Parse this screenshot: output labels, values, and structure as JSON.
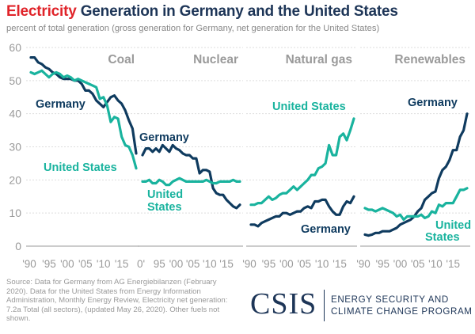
{
  "title_highlight": "Electricity",
  "title_rest": " Generation in Germany and the United States",
  "subtitle": "percent of total generation (gross generation for Germany, net generation for the United States)",
  "source": "Source: Data for Germany from AG Energiebilanzen (February 2020). Data for the United States from Energy Information Administration, Monthly Energy Review, Electricity net generation: 7.2a Total (all sectors), (updated May 26, 2020). Other fuels not shown.",
  "logo": {
    "name": "CSIS",
    "line1": "ENERGY SECURITY AND",
    "line2": "CLIMATE CHANGE PROGRAM"
  },
  "colors": {
    "germany": "#0f3b5f",
    "united_states": "#19b39e",
    "title_highlight": "#e0242a",
    "grid": "#dddddd",
    "axis_text": "#999999",
    "panel_title": "#9a9a9a"
  },
  "chart_data": [
    {
      "type": "line",
      "title": "Coal",
      "x": [
        1990,
        1991,
        1992,
        1993,
        1994,
        1995,
        1996,
        1997,
        1998,
        1999,
        2000,
        2001,
        2002,
        2003,
        2004,
        2005,
        2006,
        2007,
        2008,
        2009,
        2010,
        2011,
        2012,
        2013,
        2014,
        2015,
        2016,
        2017,
        2018,
        2019
      ],
      "ylim": [
        0,
        60
      ],
      "yticks": [
        "0",
        "10",
        "20",
        "30",
        "40",
        "50",
        "60"
      ],
      "xticks": [
        "'90",
        "'95",
        "'00",
        "'05",
        "'10",
        "'15"
      ],
      "series": [
        {
          "name": "Germany",
          "values": [
            57,
            57,
            55.5,
            55,
            54,
            53.5,
            52.5,
            52,
            51,
            50.5,
            50.5,
            50.5,
            50,
            50,
            49,
            47,
            47,
            46,
            44,
            43,
            42,
            43.5,
            45,
            45.5,
            44,
            43,
            41,
            38,
            35.5,
            28
          ]
        },
        {
          "name": "United States",
          "values": [
            52.5,
            52,
            52.5,
            53,
            52,
            51,
            52,
            52.5,
            52,
            51,
            51.5,
            51,
            50,
            50.5,
            50,
            49.5,
            49,
            48.5,
            48,
            44.5,
            45,
            42.5,
            37.5,
            39,
            38.5,
            33,
            30.5,
            30,
            27.5,
            23.5
          ]
        }
      ]
    },
    {
      "type": "line",
      "title": "Nuclear",
      "x": [
        1990,
        1991,
        1992,
        1993,
        1994,
        1995,
        1996,
        1997,
        1998,
        1999,
        2000,
        2001,
        2002,
        2003,
        2004,
        2005,
        2006,
        2007,
        2008,
        2009,
        2010,
        2011,
        2012,
        2013,
        2014,
        2015,
        2016,
        2017,
        2018,
        2019
      ],
      "ylim": [
        0,
        60
      ],
      "yticks": [
        "0",
        "10",
        "20",
        "30",
        "40",
        "50",
        "60"
      ],
      "xticks": [
        "0'",
        "95",
        "'00",
        "'05",
        "'10",
        "'15"
      ],
      "series": [
        {
          "name": "Germany",
          "values": [
            27.5,
            29.5,
            29.5,
            28.5,
            29.5,
            28.5,
            30.5,
            29.5,
            28.5,
            30.5,
            29.5,
            29,
            28,
            27.5,
            27.5,
            26.5,
            26.5,
            22,
            23,
            23,
            22.5,
            17.5,
            16,
            15.5,
            15.5,
            14,
            13,
            12,
            11.5,
            12.5
          ]
        },
        {
          "name": "United States",
          "values": [
            19.5,
            19.5,
            20,
            19,
            19,
            20,
            19.5,
            18.5,
            18.5,
            19.5,
            20,
            20.5,
            20,
            19.5,
            19.5,
            19.5,
            19.5,
            19.5,
            19.5,
            20,
            19.5,
            19,
            19,
            19.5,
            19.5,
            19.5,
            19.5,
            20,
            19.5,
            19.5
          ]
        }
      ]
    },
    {
      "type": "line",
      "title": "Natural gas",
      "x": [
        1990,
        1991,
        1992,
        1993,
        1994,
        1995,
        1996,
        1997,
        1998,
        1999,
        2000,
        2001,
        2002,
        2003,
        2004,
        2005,
        2006,
        2007,
        2008,
        2009,
        2010,
        2011,
        2012,
        2013,
        2014,
        2015,
        2016,
        2017,
        2018,
        2019
      ],
      "ylim": [
        0,
        60
      ],
      "yticks": [
        "0",
        "10",
        "20",
        "30",
        "40",
        "50",
        "60"
      ],
      "xticks": [
        "'90",
        "'95",
        "'00",
        "'05",
        "'10",
        "'15"
      ],
      "series": [
        {
          "name": "Germany",
          "values": [
            6.5,
            6.5,
            6,
            7,
            7.5,
            8,
            8.5,
            9,
            9,
            10,
            10,
            9.5,
            10,
            10.5,
            10.5,
            11.5,
            12,
            11.5,
            13.5,
            13.5,
            14,
            14,
            12,
            10.5,
            9.5,
            9.5,
            12,
            13.5,
            13,
            15
          ]
        },
        {
          "name": "United States",
          "values": [
            12.5,
            12.5,
            13,
            13,
            14,
            15,
            14,
            14.5,
            15.5,
            16,
            16,
            17,
            18,
            17,
            18,
            19,
            20,
            21.5,
            21.5,
            23.5,
            24,
            25,
            30.5,
            27.5,
            27.5,
            33,
            34,
            32,
            35,
            38.5
          ]
        }
      ]
    },
    {
      "type": "line",
      "title": "Renewables",
      "x": [
        1990,
        1991,
        1992,
        1993,
        1994,
        1995,
        1996,
        1997,
        1998,
        1999,
        2000,
        2001,
        2002,
        2003,
        2004,
        2005,
        2006,
        2007,
        2008,
        2009,
        2010,
        2011,
        2012,
        2013,
        2014,
        2015,
        2016,
        2017,
        2018,
        2019
      ],
      "ylim": [
        0,
        60
      ],
      "yticks": [
        "0",
        "10",
        "20",
        "30",
        "40",
        "50",
        "60"
      ],
      "xticks": [
        "'90",
        "'95",
        "'00",
        "'05",
        "'10",
        "'15"
      ],
      "series": [
        {
          "name": "Germany",
          "values": [
            3.5,
            3.2,
            3.5,
            4,
            4,
            4.5,
            4.5,
            4.5,
            5,
            5.5,
            6.5,
            7,
            7.5,
            8,
            9,
            10.5,
            11.5,
            14,
            15,
            16,
            16.5,
            20.5,
            23,
            24,
            26,
            29,
            29,
            33,
            35,
            40
          ]
        },
        {
          "name": "United States",
          "values": [
            11.5,
            11,
            11,
            10.5,
            11,
            11.5,
            11,
            10.5,
            10,
            9,
            9.5,
            8,
            9,
            9,
            9,
            9,
            9.5,
            8.5,
            9,
            10.5,
            10,
            12.5,
            12,
            13,
            13,
            13,
            15,
            17,
            17,
            17.5
          ]
        }
      ]
    }
  ],
  "labels": {
    "coal_germany": "Germany",
    "coal_us": "United States",
    "nuclear_germany": "Germany",
    "nuclear_us_1": "United",
    "nuclear_us_2": "States",
    "gas_us": "United States",
    "gas_germany": "Germany",
    "ren_germany": "Germany",
    "ren_us_1": "United",
    "ren_us_2": "States"
  }
}
